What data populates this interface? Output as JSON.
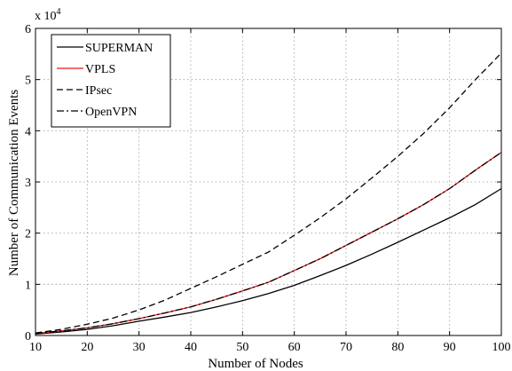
{
  "chart_data": {
    "type": "line",
    "xlabel": "Number of Nodes",
    "ylabel": "Number of Communication Events",
    "y_exponent_label": "x 10",
    "y_exponent_power": "4",
    "xlim": [
      10,
      100
    ],
    "ylim": [
      0,
      6
    ],
    "y_scale_multiplier": 10000,
    "xticks": [
      10,
      20,
      30,
      40,
      50,
      60,
      70,
      80,
      90,
      100
    ],
    "yticks": [
      0,
      1,
      2,
      3,
      4,
      5,
      6
    ],
    "grid": true,
    "legend_position": "top-left",
    "x": [
      10,
      15,
      20,
      25,
      30,
      35,
      40,
      45,
      50,
      55,
      60,
      65,
      70,
      75,
      80,
      85,
      90,
      95,
      100
    ],
    "series": [
      {
        "name": "SUPERMAN",
        "color": "#000000",
        "dash": "solid",
        "values": [
          0.03,
          0.07,
          0.12,
          0.19,
          0.28,
          0.36,
          0.45,
          0.56,
          0.68,
          0.82,
          0.98,
          1.17,
          1.37,
          1.59,
          1.82,
          2.06,
          2.3,
          2.56,
          2.87
        ]
      },
      {
        "name": "VPLS",
        "color": "#e8191b",
        "dash": "solid",
        "values": [
          0.04,
          0.09,
          0.15,
          0.23,
          0.33,
          0.44,
          0.56,
          0.71,
          0.87,
          1.04,
          1.27,
          1.5,
          1.76,
          2.02,
          2.28,
          2.56,
          2.87,
          3.23,
          3.58
        ]
      },
      {
        "name": "IPsec",
        "color": "#000000",
        "dash": "dashed",
        "values": [
          0.05,
          0.12,
          0.22,
          0.34,
          0.5,
          0.69,
          0.92,
          1.15,
          1.39,
          1.63,
          1.96,
          2.3,
          2.67,
          3.08,
          3.5,
          3.95,
          4.45,
          5.0,
          5.52
        ]
      },
      {
        "name": "OpenVPN",
        "color": "#000000",
        "dash": "dashdot",
        "values": [
          0.04,
          0.09,
          0.15,
          0.23,
          0.33,
          0.44,
          0.56,
          0.71,
          0.87,
          1.04,
          1.27,
          1.5,
          1.76,
          2.02,
          2.28,
          2.56,
          2.87,
          3.23,
          3.58
        ]
      }
    ]
  }
}
